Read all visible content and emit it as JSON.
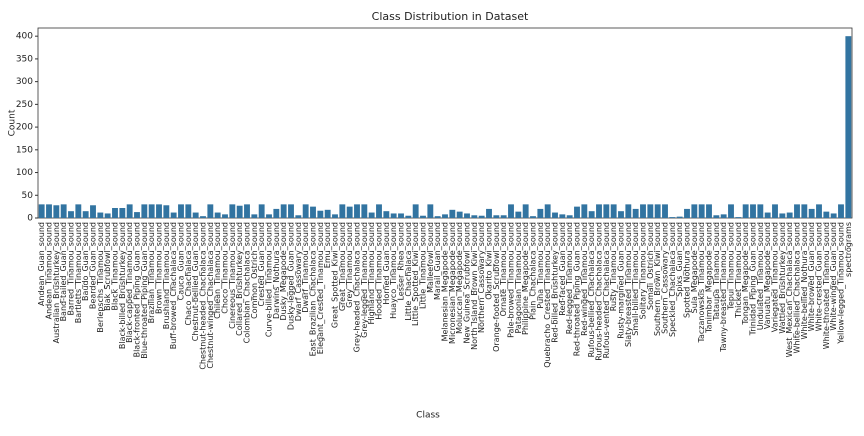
{
  "chart_data": {
    "type": "bar",
    "title": "Class Distribution in Dataset",
    "x_label": "Class",
    "y_label": "Count",
    "categories": [
      "Andean_Guan_sound",
      "Andean_Tinamou_sound",
      "Australian_Brushturkey_sound",
      "Band-tailed_Guan_sound",
      "Barred_Tinamou_sound",
      "Bartletts_Tinamou_sound",
      "Baudo_Guan_sound",
      "Bearded_Guan_sound",
      "Berlepschs_Tinamou_sound",
      "Biak_Scrubfowl_sound",
      "Black_Tinamou_sound",
      "Black-billed_Brushturkey_sound",
      "Black-capped_Tinamou_sound",
      "Black-fronted_Piping_Guan_sound",
      "Blue-throated_Piping_Guan_sound",
      "Brazilian_Tinamou_sound",
      "Brown_Tinamou_sound",
      "Brushland_Tinamou_sound",
      "Buff-browed_Chachalaca_sound",
      "Cauca_Guan_sound",
      "Chaco_Chachalaca_sound",
      "Chestnut-bellied_Guan_sound",
      "Chestnut-headed_Chachalaca_sound",
      "Chestnut-winged_Chachalaca_sound",
      "Chilean_Tinamou_sound",
      "Choco_Tinamou_sound",
      "Cinereous_Tinamou_sound",
      "Collared_Brushturkey_sound",
      "Colombian_Chachalaca_sound",
      "Common_Ostrich_sound",
      "Crested_Guan_sound",
      "Curve-billed_Tinamou_sound",
      "Darwins_Nothura_sound",
      "Dusky_Megapode_sound",
      "Dusky-legged_Guan_sound",
      "Dwarf_Cassowary_sound",
      "Dwarf_Tinamou_sound",
      "East_Brazilian_Chachalaca_sound",
      "Elegant_Crested_Tinamou_sound",
      "Emu_sound",
      "Great_Spotted_Kiwi_sound",
      "Great_Tinamou_sound",
      "Grey_Tinamou_sound",
      "Grey-headed_Chachalaca_sound",
      "Grey-legged_Tinamou_sound",
      "Highland_Tinamou_sound",
      "Hooded_Tinamou_sound",
      "Horned_Guan_sound",
      "Huayco_Tinamou_sound",
      "Lesser_Rhea_sound",
      "Little_Chachalaca_sound",
      "Little_Spotted_Kiwi_sound",
      "Little_Tinamou_sound",
      "Malleefowl_sound",
      "Marail_Guan_sound",
      "Melanesian_Megapode_sound",
      "Micronesian_Megapode_sound",
      "Moluccan_Megapode_sound",
      "New_Guinea_Scrubfowl_sound",
      "North_Island_Brown_Kiwi_sound",
      "Northern_Cassowary_sound",
      "Okarito_Kiwi_sound",
      "Orange-footed_Scrubfowl_sound",
      "Ornate_Tinamou_sound",
      "Pale-browed_Tinamou_sound",
      "Patagonian_Tinamou_sound",
      "Philippine_Megapode_sound",
      "Plain_Chachalaca_sound",
      "Puna_Tinamou_sound",
      "Quebracho_Crested_Tinamou_sound",
      "Red-billed_Brushturkey_sound",
      "Red-faced_Guan_sound",
      "Red-legged_Tinamou_sound",
      "Red-throated_Piping_Guan_sound",
      "Red-winged_Tinamou_sound",
      "Rufous-bellied_Chachalaca_sound",
      "Rufous-headed_Chachalaca_sound",
      "Rufous-vented_Chachalaca_sound",
      "Rusty_Tinamou_sound",
      "Rusty-margined_Guan_sound",
      "Slaty-breasted_Tinamou_sound",
      "Small-billed_Tinamou_sound",
      "Solitary_Tinamou_sound",
      "Somali_Ostrich_sound",
      "Southern_Brown_Kiwi_sound",
      "Southern_Cassowary_sound",
      "Speckled_Chachalaca_sound",
      "Spixs_Guan_sound",
      "Spotted_Nothura_sound",
      "Sula_Megapode_sound",
      "Taczanowskis_Tinamou_sound",
      "Tanimbar_Megapode_sound",
      "Tataupa_Tinamou_sound",
      "Tawny-breasted_Tinamou_sound",
      "Tepui_Tinamou_sound",
      "Thicket_Tinamou_sound",
      "Tongan_Megapode_sound",
      "Trinidad_Piping_Guan_sound",
      "Undulated_Tinamou_sound",
      "Vanuatu_Megapode_sound",
      "Variegated_Tinamou_sound",
      "Wattled_Brushturkey_sound",
      "West_Mexican_Chachalaca_sound",
      "White-bellied_Chachalaca_sound",
      "White-bellied_Nothura_sound",
      "White-browed_Guan_sound",
      "White-crested_Guan_sound",
      "White-throated_Tinamou_sound",
      "White-winged_Guan_sound",
      "Yellow-legged_Tinamou_sound",
      "spectrograms"
    ],
    "values": [
      30,
      30,
      28,
      30,
      15,
      30,
      15,
      28,
      12,
      10,
      22,
      22,
      30,
      13,
      30,
      30,
      30,
      28,
      12,
      30,
      30,
      12,
      4,
      30,
      12,
      8,
      30,
      27,
      30,
      8,
      30,
      8,
      20,
      30,
      30,
      6,
      30,
      25,
      16,
      18,
      8,
      30,
      25,
      30,
      30,
      12,
      30,
      15,
      10,
      10,
      5,
      30,
      5,
      30,
      4,
      8,
      18,
      14,
      10,
      6,
      5,
      20,
      6,
      6,
      30,
      14,
      30,
      4,
      20,
      30,
      12,
      8,
      6,
      25,
      30,
      15,
      30,
      30,
      30,
      15,
      30,
      20,
      30,
      30,
      30,
      30,
      2,
      3,
      20,
      30,
      30,
      30,
      6,
      8,
      30,
      2,
      30,
      30,
      30,
      12,
      30,
      10,
      12,
      30,
      30,
      20,
      30,
      14,
      10,
      30,
      400
    ],
    "color": "#3274a1",
    "ylim": [
      0,
      418
    ],
    "yticks": [
      0,
      50,
      100,
      150,
      200,
      250,
      300,
      350,
      400
    ]
  }
}
